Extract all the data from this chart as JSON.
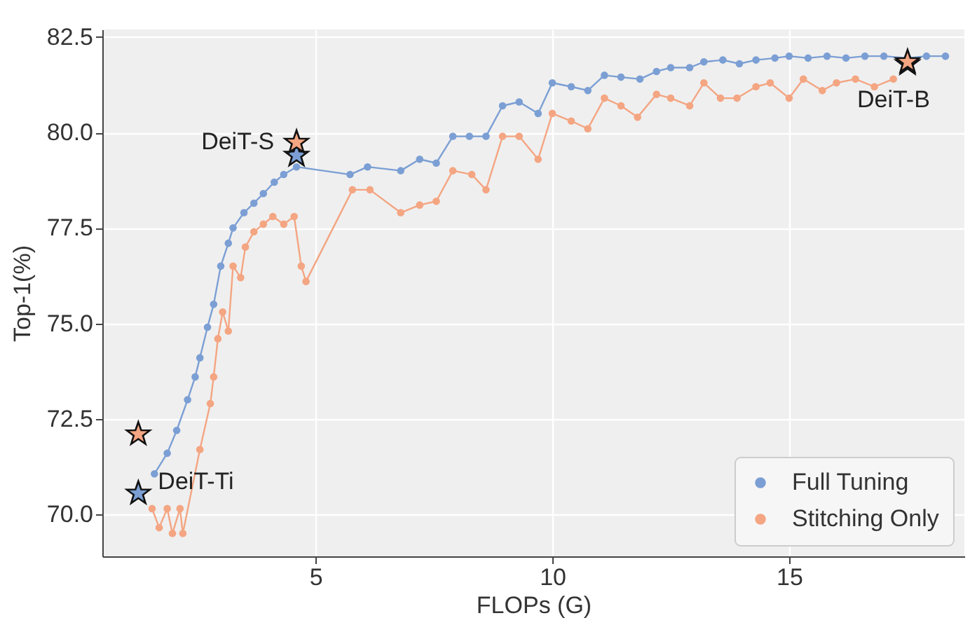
{
  "chart_data": {
    "type": "line",
    "xlabel": "FLOPs (G)",
    "ylabel": "Top-1(%)",
    "xlim": [
      0.5,
      18.7
    ],
    "xticks": [
      5,
      10,
      15
    ],
    "ylim": [
      68.9,
      82.7
    ],
    "yticks": [
      {
        "value": 70,
        "label": "70.0"
      },
      {
        "value": 72.5,
        "label": "72.5"
      },
      {
        "value": 75,
        "label": "75.0"
      },
      {
        "value": 77.5,
        "label": "77.5"
      },
      {
        "value": 80,
        "label": "80.0"
      },
      {
        "value": 82.5,
        "label": "82.5"
      }
    ],
    "grid": true,
    "legend": "bottom right",
    "line_style": "solid",
    "series": [
      {
        "name": "Full Tuning",
        "marker": "circle",
        "color": "#7b9fd4",
        "x": [
          1.6,
          1.87,
          2.07,
          2.3,
          2.46,
          2.56,
          2.72,
          2.85,
          3.0,
          3.16,
          3.26,
          3.49,
          3.7,
          3.9,
          4.13,
          4.33,
          4.6,
          5.73,
          6.1,
          6.8,
          7.2,
          7.55,
          7.9,
          8.25,
          8.6,
          8.95,
          9.3,
          9.7,
          10.0,
          10.4,
          10.75,
          11.1,
          11.45,
          11.85,
          12.2,
          12.5,
          12.9,
          13.2,
          13.6,
          13.95,
          14.3,
          14.7,
          15.0,
          15.4,
          15.8,
          16.2,
          16.6,
          17.0,
          17.5,
          17.9,
          18.3
        ],
        "values": [
          71.06,
          71.6,
          72.2,
          73.0,
          73.6,
          74.1,
          74.9,
          75.5,
          76.5,
          77.1,
          77.5,
          77.9,
          78.15,
          78.4,
          78.7,
          78.9,
          79.1,
          78.9,
          79.1,
          79.0,
          79.3,
          79.2,
          79.9,
          79.9,
          79.9,
          80.7,
          80.8,
          80.5,
          81.3,
          81.2,
          81.1,
          81.5,
          81.45,
          81.4,
          81.6,
          81.7,
          81.7,
          81.85,
          81.9,
          81.8,
          81.9,
          81.95,
          82.0,
          81.95,
          82.0,
          81.95,
          82.0,
          82.0,
          81.95,
          82.0,
          82.0
        ]
      },
      {
        "name": "Stitching Only",
        "marker": "circle",
        "color": "#f4a582",
        "x": [
          1.55,
          1.7,
          1.87,
          1.98,
          2.14,
          2.2,
          2.56,
          2.78,
          2.85,
          2.94,
          3.04,
          3.16,
          3.26,
          3.42,
          3.52,
          3.7,
          3.9,
          4.1,
          4.33,
          4.55,
          4.7,
          4.8,
          5.78,
          6.15,
          6.8,
          7.2,
          7.55,
          7.9,
          8.3,
          8.6,
          8.95,
          9.3,
          9.7,
          10.0,
          10.4,
          10.75,
          11.1,
          11.45,
          11.8,
          12.2,
          12.5,
          12.9,
          13.2,
          13.55,
          13.9,
          14.3,
          14.6,
          15.0,
          15.3,
          15.7,
          16.0,
          16.4,
          16.8,
          17.2
        ],
        "values": [
          70.15,
          69.65,
          70.15,
          69.5,
          70.15,
          69.5,
          71.7,
          72.9,
          73.6,
          74.6,
          75.3,
          74.8,
          76.5,
          76.2,
          77.0,
          77.4,
          77.6,
          77.8,
          77.6,
          77.8,
          76.5,
          76.1,
          78.5,
          78.5,
          77.9,
          78.1,
          78.2,
          79.0,
          78.9,
          78.5,
          79.9,
          79.9,
          79.3,
          80.5,
          80.3,
          80.1,
          80.9,
          80.7,
          80.4,
          81.0,
          80.9,
          80.7,
          81.3,
          80.9,
          80.9,
          81.2,
          81.3,
          80.9,
          81.4,
          81.1,
          81.3,
          81.4,
          81.2,
          81.4
        ]
      },
      {
        "type": "scatter",
        "marker": "star",
        "color": "#7b9fd4",
        "x": [
          1.26,
          4.6,
          17.5
        ],
        "values": [
          70.55,
          79.4,
          81.8
        ]
      },
      {
        "type": "scatter",
        "marker": "star",
        "color": "#f4a582",
        "x": [
          1.26,
          4.6,
          17.5
        ],
        "values": [
          72.1,
          79.74,
          81.85
        ]
      }
    ],
    "annotations": [
      {
        "text": "DeiT-Ti",
        "x": 1.26,
        "y": 70.55
      },
      {
        "text": "DeiT-S",
        "x": 4.6,
        "y": 79.74
      },
      {
        "text": "DeiT-B",
        "x": 17.5,
        "y": 81.8
      }
    ]
  }
}
